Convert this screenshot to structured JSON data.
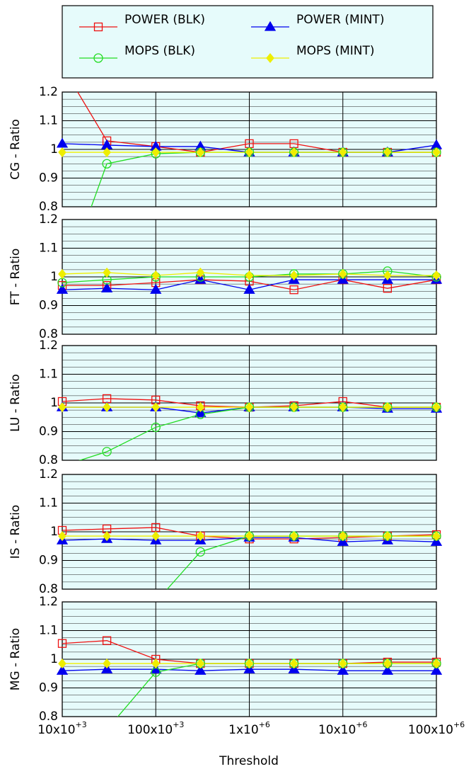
{
  "chart_data": {
    "type": "line",
    "xlabel": "Threshold",
    "log_x": true,
    "grid": true,
    "x": [
      10000,
      30000,
      100000,
      300000,
      1000000,
      3000000,
      10000000,
      30000000,
      100000000
    ],
    "xlim": [
      10000,
      100000000
    ],
    "xticks": [
      {
        "value": 10000,
        "label": "10x10+3"
      },
      {
        "value": 100000,
        "label": "100x10+3"
      },
      {
        "value": 1000000,
        "label": "1x10+6"
      },
      {
        "value": 10000000,
        "label": "10x10+6"
      },
      {
        "value": 100000000,
        "label": "100x10+6"
      }
    ],
    "series": [
      {
        "name": "POWER (BLK)",
        "color": "#ee1111",
        "marker": "open-square"
      },
      {
        "name": "POWER (MINT)",
        "color": "#0000ee",
        "marker": "triangle"
      },
      {
        "name": "MOPS (BLK)",
        "color": "#22dd22",
        "marker": "open-circle"
      },
      {
        "name": "MOPS (MINT)",
        "color": "#eeee00",
        "marker": "diamond"
      }
    ],
    "panels": [
      {
        "ylabel": "CG - Ratio",
        "ylim": [
          0.8,
          1.2
        ],
        "yticks": [
          0.8,
          0.9,
          1,
          1.1,
          1.2
        ],
        "minor_yticks": [
          0.825,
          0.85,
          0.875,
          0.925,
          0.95,
          0.975,
          1.025,
          1.05,
          1.075,
          1.125,
          1.15,
          1.175
        ],
        "values": [
          [
            1.29,
            1.03,
            1.01,
            0.99,
            1.02,
            1.02,
            0.99,
            0.99,
            0.99
          ],
          [
            1.02,
            1.015,
            1.01,
            1.01,
            0.99,
            0.99,
            0.99,
            0.99,
            1.015
          ],
          [
            0.52,
            0.95,
            0.985,
            0.99,
            0.99,
            0.99,
            0.99,
            0.99,
            0.99
          ],
          [
            0.99,
            0.99,
            0.99,
            0.99,
            0.99,
            0.99,
            0.99,
            0.99,
            0.99
          ]
        ]
      },
      {
        "ylabel": "FT - Ratio",
        "ylim": [
          0.8,
          1.2
        ],
        "yticks": [
          0.8,
          0.9,
          1,
          1.1,
          1.2
        ],
        "minor_yticks": [
          0.825,
          0.85,
          0.875,
          0.925,
          0.95,
          0.975,
          1.025,
          1.05,
          1.075,
          1.125,
          1.15,
          1.175
        ],
        "values": [
          [
            0.97,
            0.97,
            0.98,
            0.99,
            0.985,
            0.955,
            0.99,
            0.96,
            0.99
          ],
          [
            0.955,
            0.96,
            0.955,
            0.99,
            0.955,
            0.99,
            0.99,
            0.99,
            0.99
          ],
          [
            0.98,
            0.99,
            1.0,
            1.0,
            1.0,
            1.01,
            1.01,
            1.02,
            1.0
          ],
          [
            1.01,
            1.015,
            1.005,
            1.015,
            1.005,
            1.005,
            1.01,
            1.005,
            1.005
          ]
        ]
      },
      {
        "ylabel": "LU - Ratio",
        "ylim": [
          0.8,
          1.2
        ],
        "yticks": [
          0.8,
          0.9,
          1,
          1.1,
          1.2
        ],
        "minor_yticks": [
          0.825,
          0.85,
          0.875,
          0.925,
          0.95,
          0.975,
          1.025,
          1.05,
          1.075,
          1.125,
          1.15,
          1.175
        ],
        "values": [
          [
            1.005,
            1.015,
            1.01,
            0.99,
            0.985,
            0.99,
            1.005,
            0.985,
            0.985
          ],
          [
            0.985,
            0.985,
            0.985,
            0.965,
            0.985,
            0.985,
            0.985,
            0.98,
            0.98
          ],
          [
            0.78,
            0.83,
            0.915,
            0.96,
            0.985,
            0.985,
            0.985,
            0.985,
            0.985
          ],
          [
            0.985,
            0.985,
            0.985,
            0.985,
            0.985,
            0.985,
            0.985,
            0.985,
            0.985
          ]
        ]
      },
      {
        "ylabel": "IS - Ratio",
        "ylim": [
          0.8,
          1.2
        ],
        "yticks": [
          0.8,
          0.9,
          1,
          1.1,
          1.2
        ],
        "minor_yticks": [
          0.825,
          0.85,
          0.875,
          0.925,
          0.95,
          0.975,
          1.025,
          1.05,
          1.075,
          1.125,
          1.15,
          1.175
        ],
        "values": [
          [
            1.005,
            1.01,
            1.015,
            0.985,
            0.975,
            0.975,
            0.98,
            0.985,
            0.99
          ],
          [
            0.97,
            0.975,
            0.97,
            0.97,
            0.98,
            0.98,
            0.965,
            0.97,
            0.965
          ],
          [
            0.41,
            0.57,
            0.755,
            0.93,
            0.985,
            0.985,
            0.985,
            0.985,
            0.985
          ],
          [
            0.985,
            0.985,
            0.985,
            0.985,
            0.985,
            0.985,
            0.985,
            0.985,
            0.985
          ]
        ]
      },
      {
        "ylabel": "MG - Ratio",
        "ylim": [
          0.8,
          1.2
        ],
        "yticks": [
          0.8,
          0.9,
          1,
          1.1,
          1.2
        ],
        "minor_yticks": [
          0.825,
          0.85,
          0.875,
          0.925,
          0.95,
          0.975,
          1.025,
          1.05,
          1.075,
          1.125,
          1.15,
          1.175
        ],
        "values": [
          [
            1.055,
            1.065,
            1.0,
            0.985,
            0.985,
            0.985,
            0.985,
            0.99,
            0.99
          ],
          [
            0.96,
            0.965,
            0.965,
            0.96,
            0.965,
            0.965,
            0.96,
            0.96,
            0.96
          ],
          [
            0.565,
            0.755,
            0.955,
            0.985,
            0.985,
            0.985,
            0.985,
            0.985,
            0.985
          ],
          [
            0.985,
            0.985,
            0.985,
            0.985,
            0.985,
            0.985,
            0.985,
            0.985,
            0.985
          ]
        ]
      }
    ]
  }
}
